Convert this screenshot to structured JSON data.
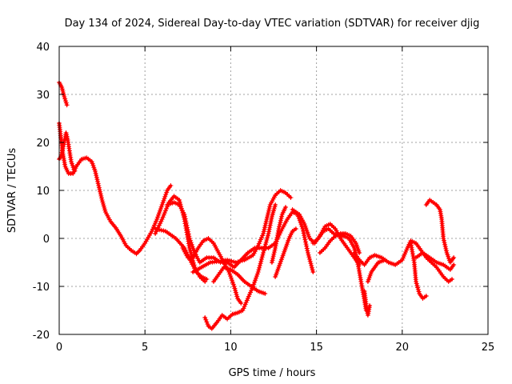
{
  "chart_data": {
    "type": "scatter",
    "title": "Day 134 of 2024, Sidereal Day-to-day VTEC variation (SDTVAR) for receiver djig",
    "xlabel": "GPS time / hours",
    "ylabel": "SDTVAR / TECUs",
    "xlim": [
      0,
      25
    ],
    "ylim": [
      -20,
      40
    ],
    "xticks": [
      0,
      5,
      10,
      15,
      20,
      25
    ],
    "yticks": [
      -20,
      -10,
      0,
      10,
      20,
      30,
      40
    ],
    "grid": true,
    "color": "#ff0000",
    "marker": "+",
    "series": [
      {
        "name": "track-1",
        "points": [
          [
            0.0,
            32.5
          ],
          [
            0.15,
            31.5
          ],
          [
            0.3,
            29.5
          ],
          [
            0.45,
            27.8
          ]
        ]
      },
      {
        "name": "track-2",
        "points": [
          [
            0.0,
            24
          ],
          [
            0.1,
            21
          ],
          [
            0.2,
            18
          ],
          [
            0.35,
            15
          ],
          [
            0.55,
            13.5
          ],
          [
            0.8,
            13.5
          ],
          [
            1.0,
            15
          ],
          [
            1.3,
            16.5
          ],
          [
            1.6,
            16.8
          ],
          [
            1.9,
            16
          ],
          [
            2.1,
            14
          ],
          [
            2.3,
            11
          ],
          [
            2.5,
            8
          ],
          [
            2.7,
            5.5
          ],
          [
            3.0,
            3.5
          ],
          [
            3.3,
            2.2
          ],
          [
            3.6,
            0.5
          ],
          [
            3.9,
            -1.5
          ],
          [
            4.2,
            -2.5
          ],
          [
            4.5,
            -3.2
          ],
          [
            4.7,
            -2.5
          ],
          [
            5.0,
            -1
          ],
          [
            5.4,
            1.5
          ],
          [
            5.7,
            4
          ],
          [
            6.0,
            7
          ],
          [
            6.3,
            10
          ],
          [
            6.5,
            11
          ]
        ]
      },
      {
        "name": "track-3",
        "points": [
          [
            0.0,
            16.5
          ],
          [
            0.1,
            17
          ],
          [
            0.3,
            20
          ],
          [
            0.4,
            22
          ],
          [
            0.5,
            20.5
          ],
          [
            0.7,
            16
          ],
          [
            0.9,
            14
          ]
        ]
      },
      {
        "name": "track-4",
        "points": [
          [
            5.6,
            1
          ],
          [
            6.0,
            4
          ],
          [
            6.4,
            7.5
          ],
          [
            6.7,
            8.8
          ],
          [
            7.0,
            8
          ],
          [
            7.3,
            4
          ],
          [
            7.6,
            -2
          ],
          [
            7.9,
            -6
          ],
          [
            8.2,
            -8
          ],
          [
            8.5,
            -9
          ]
        ]
      },
      {
        "name": "track-5",
        "points": [
          [
            5.6,
            2
          ],
          [
            6.2,
            1.5
          ],
          [
            6.8,
            0
          ],
          [
            7.3,
            -2
          ],
          [
            7.7,
            -5
          ],
          [
            8.0,
            -7
          ],
          [
            8.3,
            -8
          ],
          [
            8.6,
            -8.5
          ]
        ]
      },
      {
        "name": "track-6",
        "points": [
          [
            6.3,
            7
          ],
          [
            6.7,
            7.5
          ],
          [
            7.0,
            7
          ],
          [
            7.3,
            5
          ],
          [
            7.6,
            0
          ],
          [
            7.9,
            -3
          ],
          [
            8.2,
            -5
          ],
          [
            8.6,
            -4
          ],
          [
            9.0,
            -4
          ],
          [
            9.4,
            -5
          ],
          [
            9.8,
            -5
          ],
          [
            10.2,
            -6
          ],
          [
            10.6,
            -4.5
          ],
          [
            11.0,
            -3
          ],
          [
            11.4,
            -2
          ],
          [
            11.8,
            -2
          ],
          [
            12.2,
            -2
          ],
          [
            12.6,
            -1
          ],
          [
            13.0,
            2
          ],
          [
            13.3,
            4
          ],
          [
            13.6,
            5.5
          ],
          [
            13.9,
            5
          ],
          [
            14.2,
            2
          ],
          [
            14.5,
            -3
          ],
          [
            14.8,
            -7
          ]
        ]
      },
      {
        "name": "track-7",
        "points": [
          [
            7.2,
            -2
          ],
          [
            7.5,
            -4
          ],
          [
            7.8,
            -4
          ],
          [
            8.1,
            -2
          ],
          [
            8.4,
            -0.5
          ],
          [
            8.7,
            0
          ],
          [
            9.0,
            -1
          ],
          [
            9.3,
            -3
          ],
          [
            9.6,
            -5
          ],
          [
            9.9,
            -7
          ],
          [
            10.2,
            -10
          ],
          [
            10.4,
            -12.5
          ],
          [
            10.6,
            -13.5
          ]
        ]
      },
      {
        "name": "track-8",
        "points": [
          [
            7.8,
            -7
          ],
          [
            8.3,
            -6
          ],
          [
            8.8,
            -5
          ],
          [
            9.3,
            -4.8
          ],
          [
            9.8,
            -4.5
          ],
          [
            10.3,
            -5
          ],
          [
            10.8,
            -4.5
          ],
          [
            11.3,
            -3.5
          ],
          [
            11.6,
            -1.5
          ],
          [
            11.9,
            1
          ],
          [
            12.1,
            4
          ],
          [
            12.3,
            7
          ],
          [
            12.6,
            9
          ],
          [
            12.9,
            10
          ],
          [
            13.2,
            9.5
          ],
          [
            13.5,
            8.5
          ]
        ]
      },
      {
        "name": "track-9",
        "points": [
          [
            9.0,
            -9
          ],
          [
            9.3,
            -7.5
          ],
          [
            9.6,
            -6
          ],
          [
            10.0,
            -6.5
          ],
          [
            10.4,
            -7.5
          ],
          [
            10.8,
            -9
          ],
          [
            11.2,
            -10
          ],
          [
            11.6,
            -11
          ],
          [
            12.0,
            -11.5
          ]
        ]
      },
      {
        "name": "track-10",
        "points": [
          [
            8.5,
            -16.5
          ],
          [
            8.7,
            -18.3
          ],
          [
            8.9,
            -18.8
          ],
          [
            9.2,
            -17.5
          ],
          [
            9.5,
            -16
          ],
          [
            9.8,
            -16.8
          ],
          [
            10.1,
            -15.8
          ],
          [
            10.4,
            -15.5
          ],
          [
            10.7,
            -15
          ],
          [
            11.0,
            -12.5
          ],
          [
            11.3,
            -10
          ],
          [
            11.6,
            -7
          ],
          [
            11.9,
            -3
          ],
          [
            12.2,
            1
          ],
          [
            12.4,
            4.5
          ],
          [
            12.6,
            7
          ]
        ]
      },
      {
        "name": "track-11",
        "points": [
          [
            12.4,
            -5
          ],
          [
            12.6,
            -2
          ],
          [
            12.8,
            2
          ],
          [
            13.0,
            5
          ],
          [
            13.2,
            6.5
          ]
        ]
      },
      {
        "name": "track-12",
        "points": [
          [
            12.6,
            -8
          ],
          [
            12.8,
            -6
          ],
          [
            13.0,
            -4
          ],
          [
            13.2,
            -2
          ],
          [
            13.4,
            0
          ],
          [
            13.6,
            1.5
          ],
          [
            13.8,
            2
          ]
        ]
      },
      {
        "name": "track-13",
        "points": [
          [
            13.6,
            6
          ],
          [
            14.0,
            5
          ],
          [
            14.3,
            3
          ],
          [
            14.6,
            0
          ],
          [
            14.9,
            -1
          ],
          [
            15.2,
            0.5
          ],
          [
            15.5,
            2.5
          ],
          [
            15.8,
            3
          ],
          [
            16.1,
            2
          ],
          [
            16.4,
            0
          ],
          [
            16.7,
            -1.5
          ],
          [
            17.0,
            -3
          ],
          [
            17.3,
            -4.5
          ],
          [
            17.5,
            -5.5
          ]
        ]
      },
      {
        "name": "track-14",
        "points": [
          [
            14.8,
            -1
          ],
          [
            15.1,
            0
          ],
          [
            15.4,
            1.5
          ],
          [
            15.7,
            2
          ],
          [
            16.0,
            1
          ],
          [
            16.3,
            0.5
          ],
          [
            16.6,
            0.5
          ],
          [
            16.9,
            0
          ],
          [
            17.2,
            -2
          ],
          [
            17.4,
            -5
          ],
          [
            17.6,
            -9
          ],
          [
            17.8,
            -13
          ],
          [
            17.9,
            -15
          ]
        ]
      },
      {
        "name": "track-15",
        "points": [
          [
            15.2,
            -3
          ],
          [
            15.5,
            -2
          ],
          [
            15.8,
            -0.5
          ],
          [
            16.1,
            0.5
          ],
          [
            16.4,
            1
          ],
          [
            16.7,
            1
          ],
          [
            17.0,
            0.5
          ],
          [
            17.3,
            -1
          ],
          [
            17.5,
            -3
          ]
        ]
      },
      {
        "name": "track-16",
        "points": [
          [
            17.2,
            -3
          ],
          [
            17.5,
            -4.5
          ],
          [
            17.8,
            -5.5
          ],
          [
            18.1,
            -4
          ],
          [
            18.4,
            -3.5
          ],
          [
            18.8,
            -4
          ],
          [
            19.2,
            -5
          ],
          [
            19.6,
            -5.5
          ],
          [
            20.0,
            -4.5
          ],
          [
            20.3,
            -2
          ],
          [
            20.5,
            -0.5
          ],
          [
            20.8,
            -1
          ],
          [
            21.1,
            -2.5
          ],
          [
            21.4,
            -4
          ],
          [
            21.7,
            -5
          ],
          [
            22.0,
            -6
          ],
          [
            22.4,
            -8
          ],
          [
            22.7,
            -9
          ],
          [
            22.9,
            -8.5
          ]
        ]
      },
      {
        "name": "track-17",
        "points": [
          [
            17.8,
            -11
          ],
          [
            17.9,
            -14
          ],
          [
            18.0,
            -16
          ],
          [
            18.1,
            -14
          ]
        ]
      },
      {
        "name": "track-18",
        "points": [
          [
            18.0,
            -9
          ],
          [
            18.2,
            -7
          ],
          [
            18.4,
            -6
          ],
          [
            18.6,
            -5
          ],
          [
            19.0,
            -4.5
          ]
        ]
      },
      {
        "name": "track-19",
        "points": [
          [
            20.5,
            -1
          ],
          [
            20.7,
            -5
          ],
          [
            20.8,
            -9
          ],
          [
            21.0,
            -11.5
          ],
          [
            21.2,
            -12.5
          ],
          [
            21.4,
            -12
          ]
        ]
      },
      {
        "name": "track-20",
        "points": [
          [
            20.8,
            -4
          ],
          [
            21.2,
            -3
          ],
          [
            21.6,
            -4
          ],
          [
            22.0,
            -5
          ],
          [
            22.4,
            -5.5
          ],
          [
            22.8,
            -6.5
          ],
          [
            23.0,
            -5.5
          ]
        ]
      },
      {
        "name": "track-21",
        "points": [
          [
            21.4,
            7
          ],
          [
            21.6,
            8
          ],
          [
            21.8,
            7.5
          ],
          [
            22.0,
            7
          ],
          [
            22.2,
            6
          ],
          [
            22.3,
            4
          ],
          [
            22.4,
            0
          ],
          [
            22.6,
            -3
          ],
          [
            22.8,
            -5
          ],
          [
            22.9,
            -4.5
          ],
          [
            23.0,
            -4
          ]
        ]
      }
    ]
  }
}
